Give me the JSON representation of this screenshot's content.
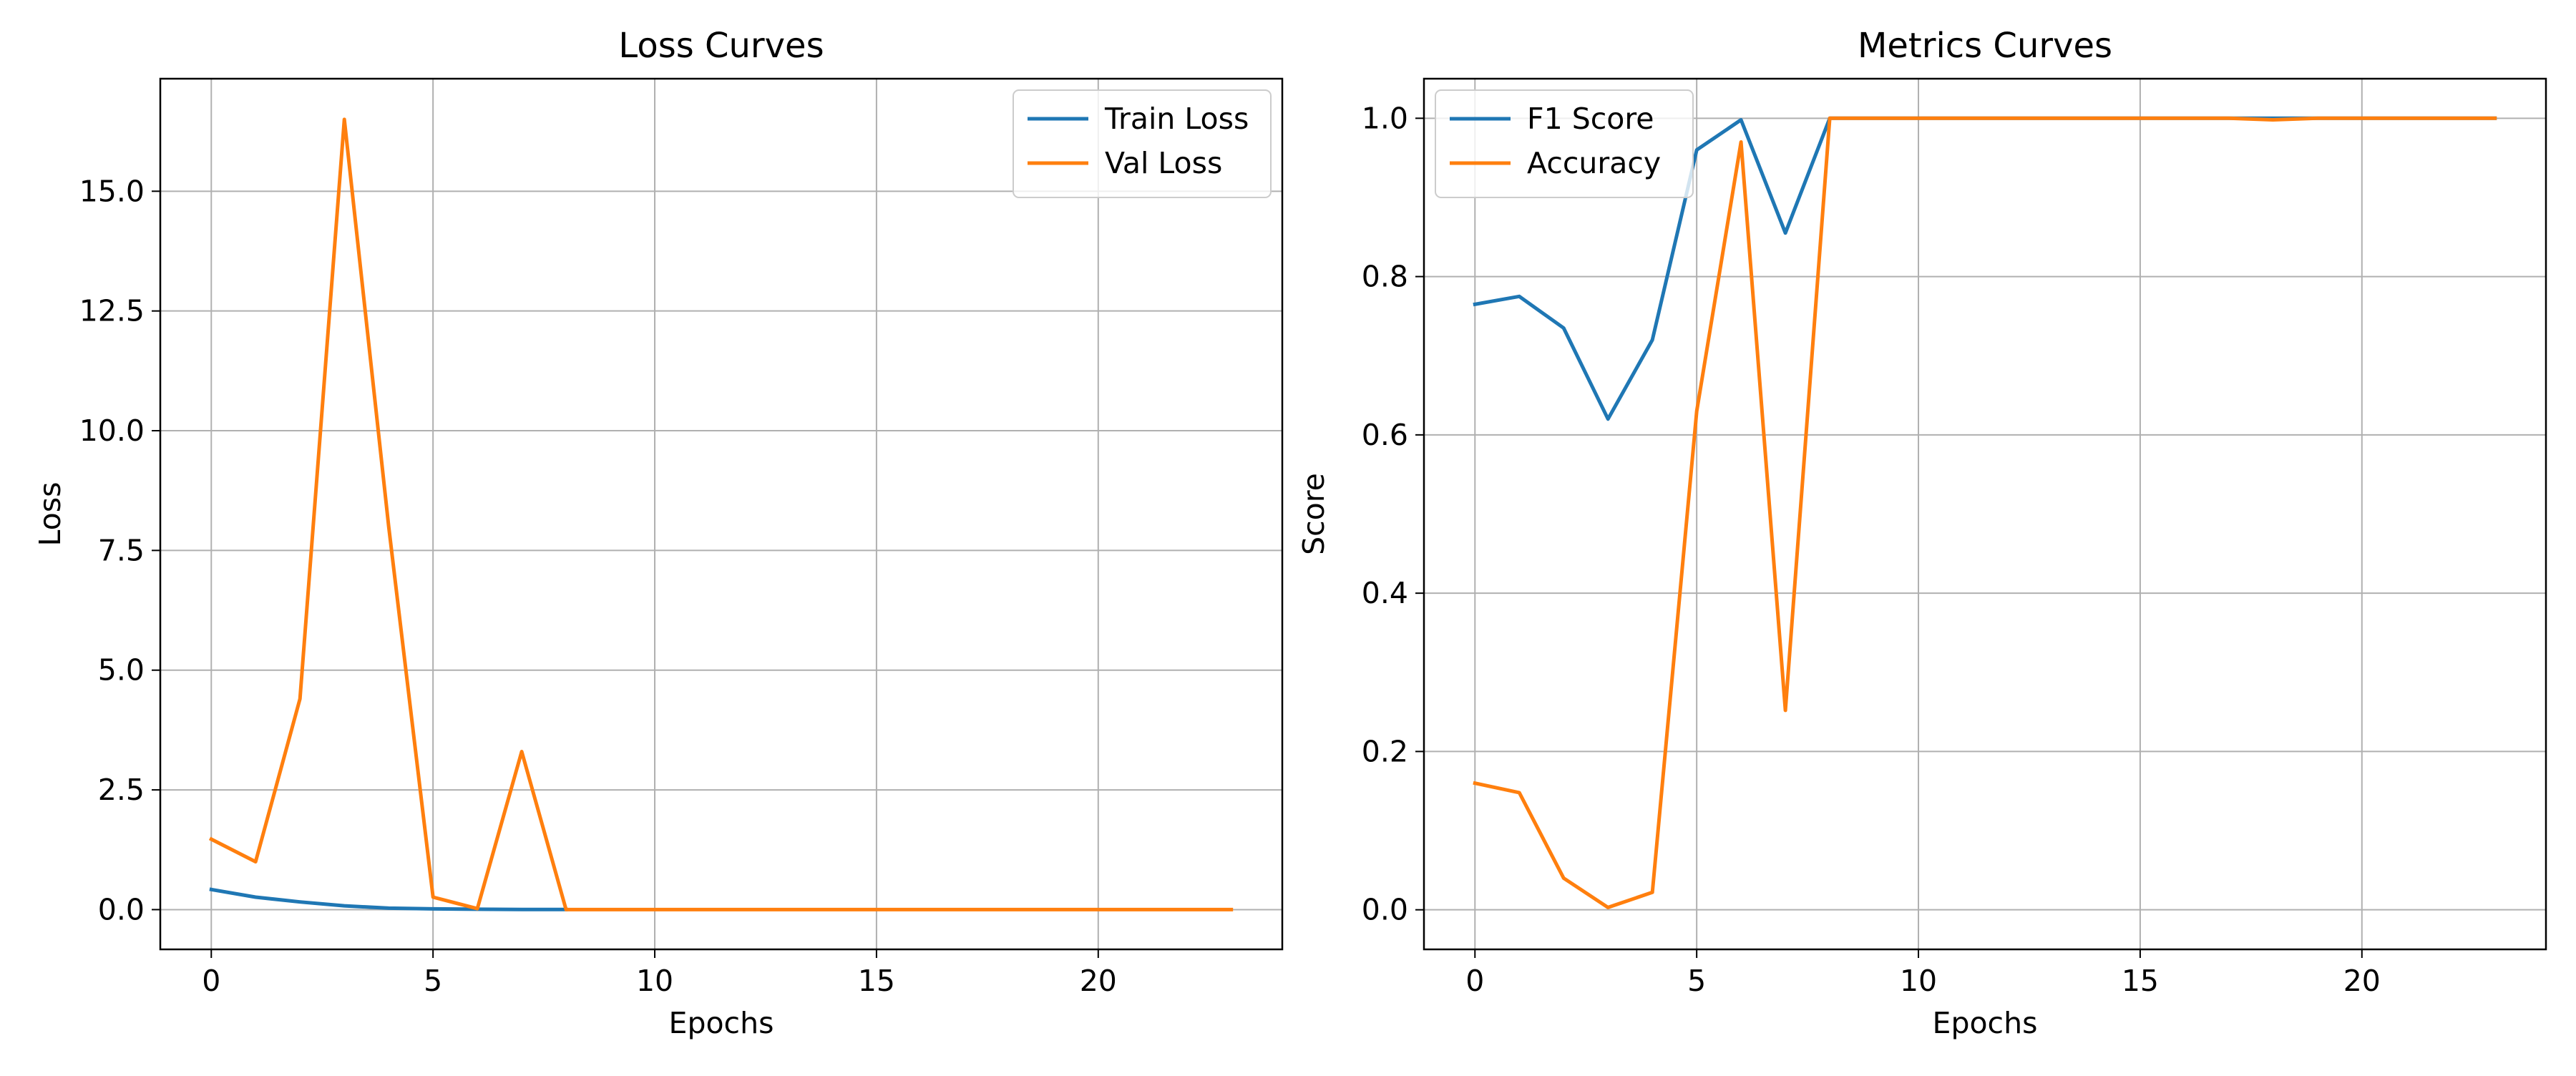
{
  "colors": {
    "blue": "#1f77b4",
    "orange": "#ff7f0e",
    "grid": "#b0b0b0"
  },
  "chart_data": [
    {
      "type": "line",
      "title": "Loss Curves",
      "xlabel": "Epochs",
      "ylabel": "Loss",
      "xlim": [
        -1.15,
        24.15
      ],
      "ylim": [
        -0.83,
        17.35
      ],
      "xticks": [
        0,
        5,
        10,
        15,
        20
      ],
      "xtick_labels": [
        "0",
        "5",
        "10",
        "15",
        "20"
      ],
      "yticks": [
        0,
        2.5,
        5,
        7.5,
        10,
        12.5,
        15
      ],
      "ytick_labels": [
        "0.0",
        "2.5",
        "5.0",
        "7.5",
        "10.0",
        "12.5",
        "15.0"
      ],
      "grid": true,
      "legend_position": "upper right",
      "x": [
        0,
        1,
        2,
        3,
        4,
        5,
        6,
        7,
        8,
        9,
        10,
        11,
        12,
        13,
        14,
        15,
        16,
        17,
        18,
        19,
        20,
        21,
        22,
        23
      ],
      "series": [
        {
          "name": "Train Loss",
          "color": "#1f77b4",
          "x": [
            0,
            1,
            2,
            3,
            4,
            5,
            6,
            7,
            8
          ],
          "values": [
            0.42,
            0.26,
            0.16,
            0.08,
            0.03,
            0.015,
            0.008,
            0.004,
            0.002
          ]
        },
        {
          "name": "Val Loss",
          "color": "#ff7f0e",
          "x": [
            0,
            1,
            2,
            3,
            4,
            5,
            6,
            7,
            8,
            9,
            10,
            11,
            12,
            13,
            14,
            15,
            16,
            17,
            18,
            19,
            20,
            21,
            22,
            23
          ],
          "values": [
            1.47,
            1.0,
            4.4,
            16.5,
            8.0,
            0.26,
            0.02,
            3.3,
            0.0,
            0,
            0,
            0,
            0,
            0,
            0,
            0,
            0,
            0,
            0,
            0,
            0,
            0,
            0,
            0
          ]
        }
      ]
    },
    {
      "type": "line",
      "title": "Metrics Curves",
      "xlabel": "Epochs",
      "ylabel": "Score",
      "xlim": [
        -1.15,
        24.15
      ],
      "ylim": [
        -0.05,
        1.05
      ],
      "xticks": [
        0,
        5,
        10,
        15,
        20
      ],
      "xtick_labels": [
        "0",
        "5",
        "10",
        "15",
        "20"
      ],
      "yticks": [
        0,
        0.2,
        0.4,
        0.6,
        0.8,
        1.0
      ],
      "ytick_labels": [
        "0.0",
        "0.2",
        "0.4",
        "0.6",
        "0.8",
        "1.0"
      ],
      "grid": true,
      "legend_position": "upper left",
      "series": [
        {
          "name": "F1 Score",
          "color": "#1f77b4",
          "x": [
            0,
            1,
            2,
            3,
            4,
            5,
            6,
            7,
            8,
            9,
            10,
            11,
            12,
            13,
            14,
            15,
            16,
            17,
            18,
            19,
            20,
            21,
            22,
            23
          ],
          "values": [
            0.765,
            0.775,
            0.735,
            0.62,
            0.72,
            0.96,
            0.998,
            0.855,
            1.0,
            1.0,
            1.0,
            1.0,
            1.0,
            1.0,
            1.0,
            1.0,
            1.0,
            1.0,
            1.0,
            1.0,
            1.0,
            1.0,
            1.0,
            1.0
          ]
        },
        {
          "name": "Accuracy",
          "color": "#ff7f0e",
          "x": [
            0,
            1,
            2,
            3,
            4,
            5,
            6,
            7,
            8,
            9,
            10,
            11,
            12,
            13,
            14,
            15,
            16,
            17,
            18,
            19,
            20,
            21,
            22,
            23
          ],
          "values": [
            0.16,
            0.148,
            0.04,
            0.003,
            0.022,
            0.63,
            0.97,
            0.252,
            1.0,
            1.0,
            1.0,
            1.0,
            1.0,
            1.0,
            1.0,
            1.0,
            1.0,
            1.0,
            0.998,
            1.0,
            1.0,
            1.0,
            1.0,
            1.0
          ]
        }
      ]
    }
  ]
}
